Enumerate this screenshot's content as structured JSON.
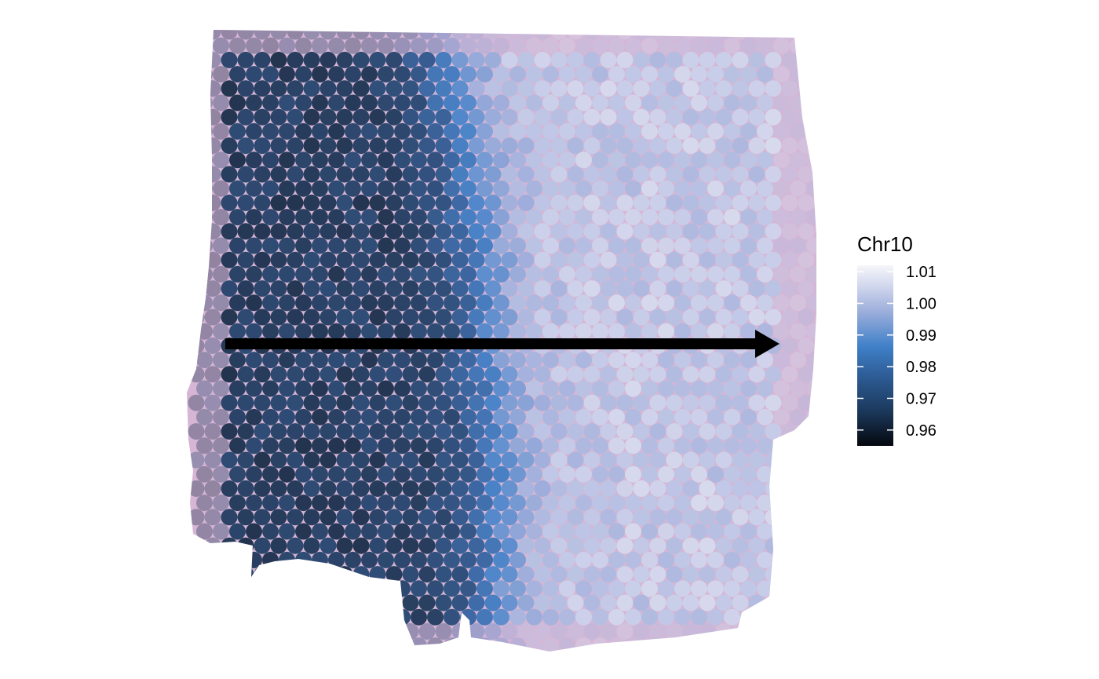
{
  "chart_data": {
    "type": "spatial",
    "legend": {
      "title": "Chr10",
      "ticks": [
        "1.01",
        "1.00",
        "0.99",
        "0.98",
        "0.97",
        "0.96"
      ],
      "tick_values": [
        1.01,
        1.0,
        0.99,
        0.98,
        0.97,
        0.96
      ],
      "range": [
        0.955,
        1.012
      ],
      "placement": "right"
    },
    "colors": {
      "high": "#f3f3f8",
      "upper_mid": "#c3cbe6",
      "mid": "#3f80c8",
      "lower_mid": "#254f80",
      "low": "#07101c",
      "tissue_pink": "#c9a3c8",
      "tissue_purple": "#7a5aa0",
      "arrow": "#000000"
    },
    "description_regions": {
      "left_half_value": 0.966,
      "right_half_value": 1.003,
      "boundary": "left-to-right gradient with sharp transition near center"
    },
    "arrow": {
      "direction": "left-to-right"
    }
  }
}
